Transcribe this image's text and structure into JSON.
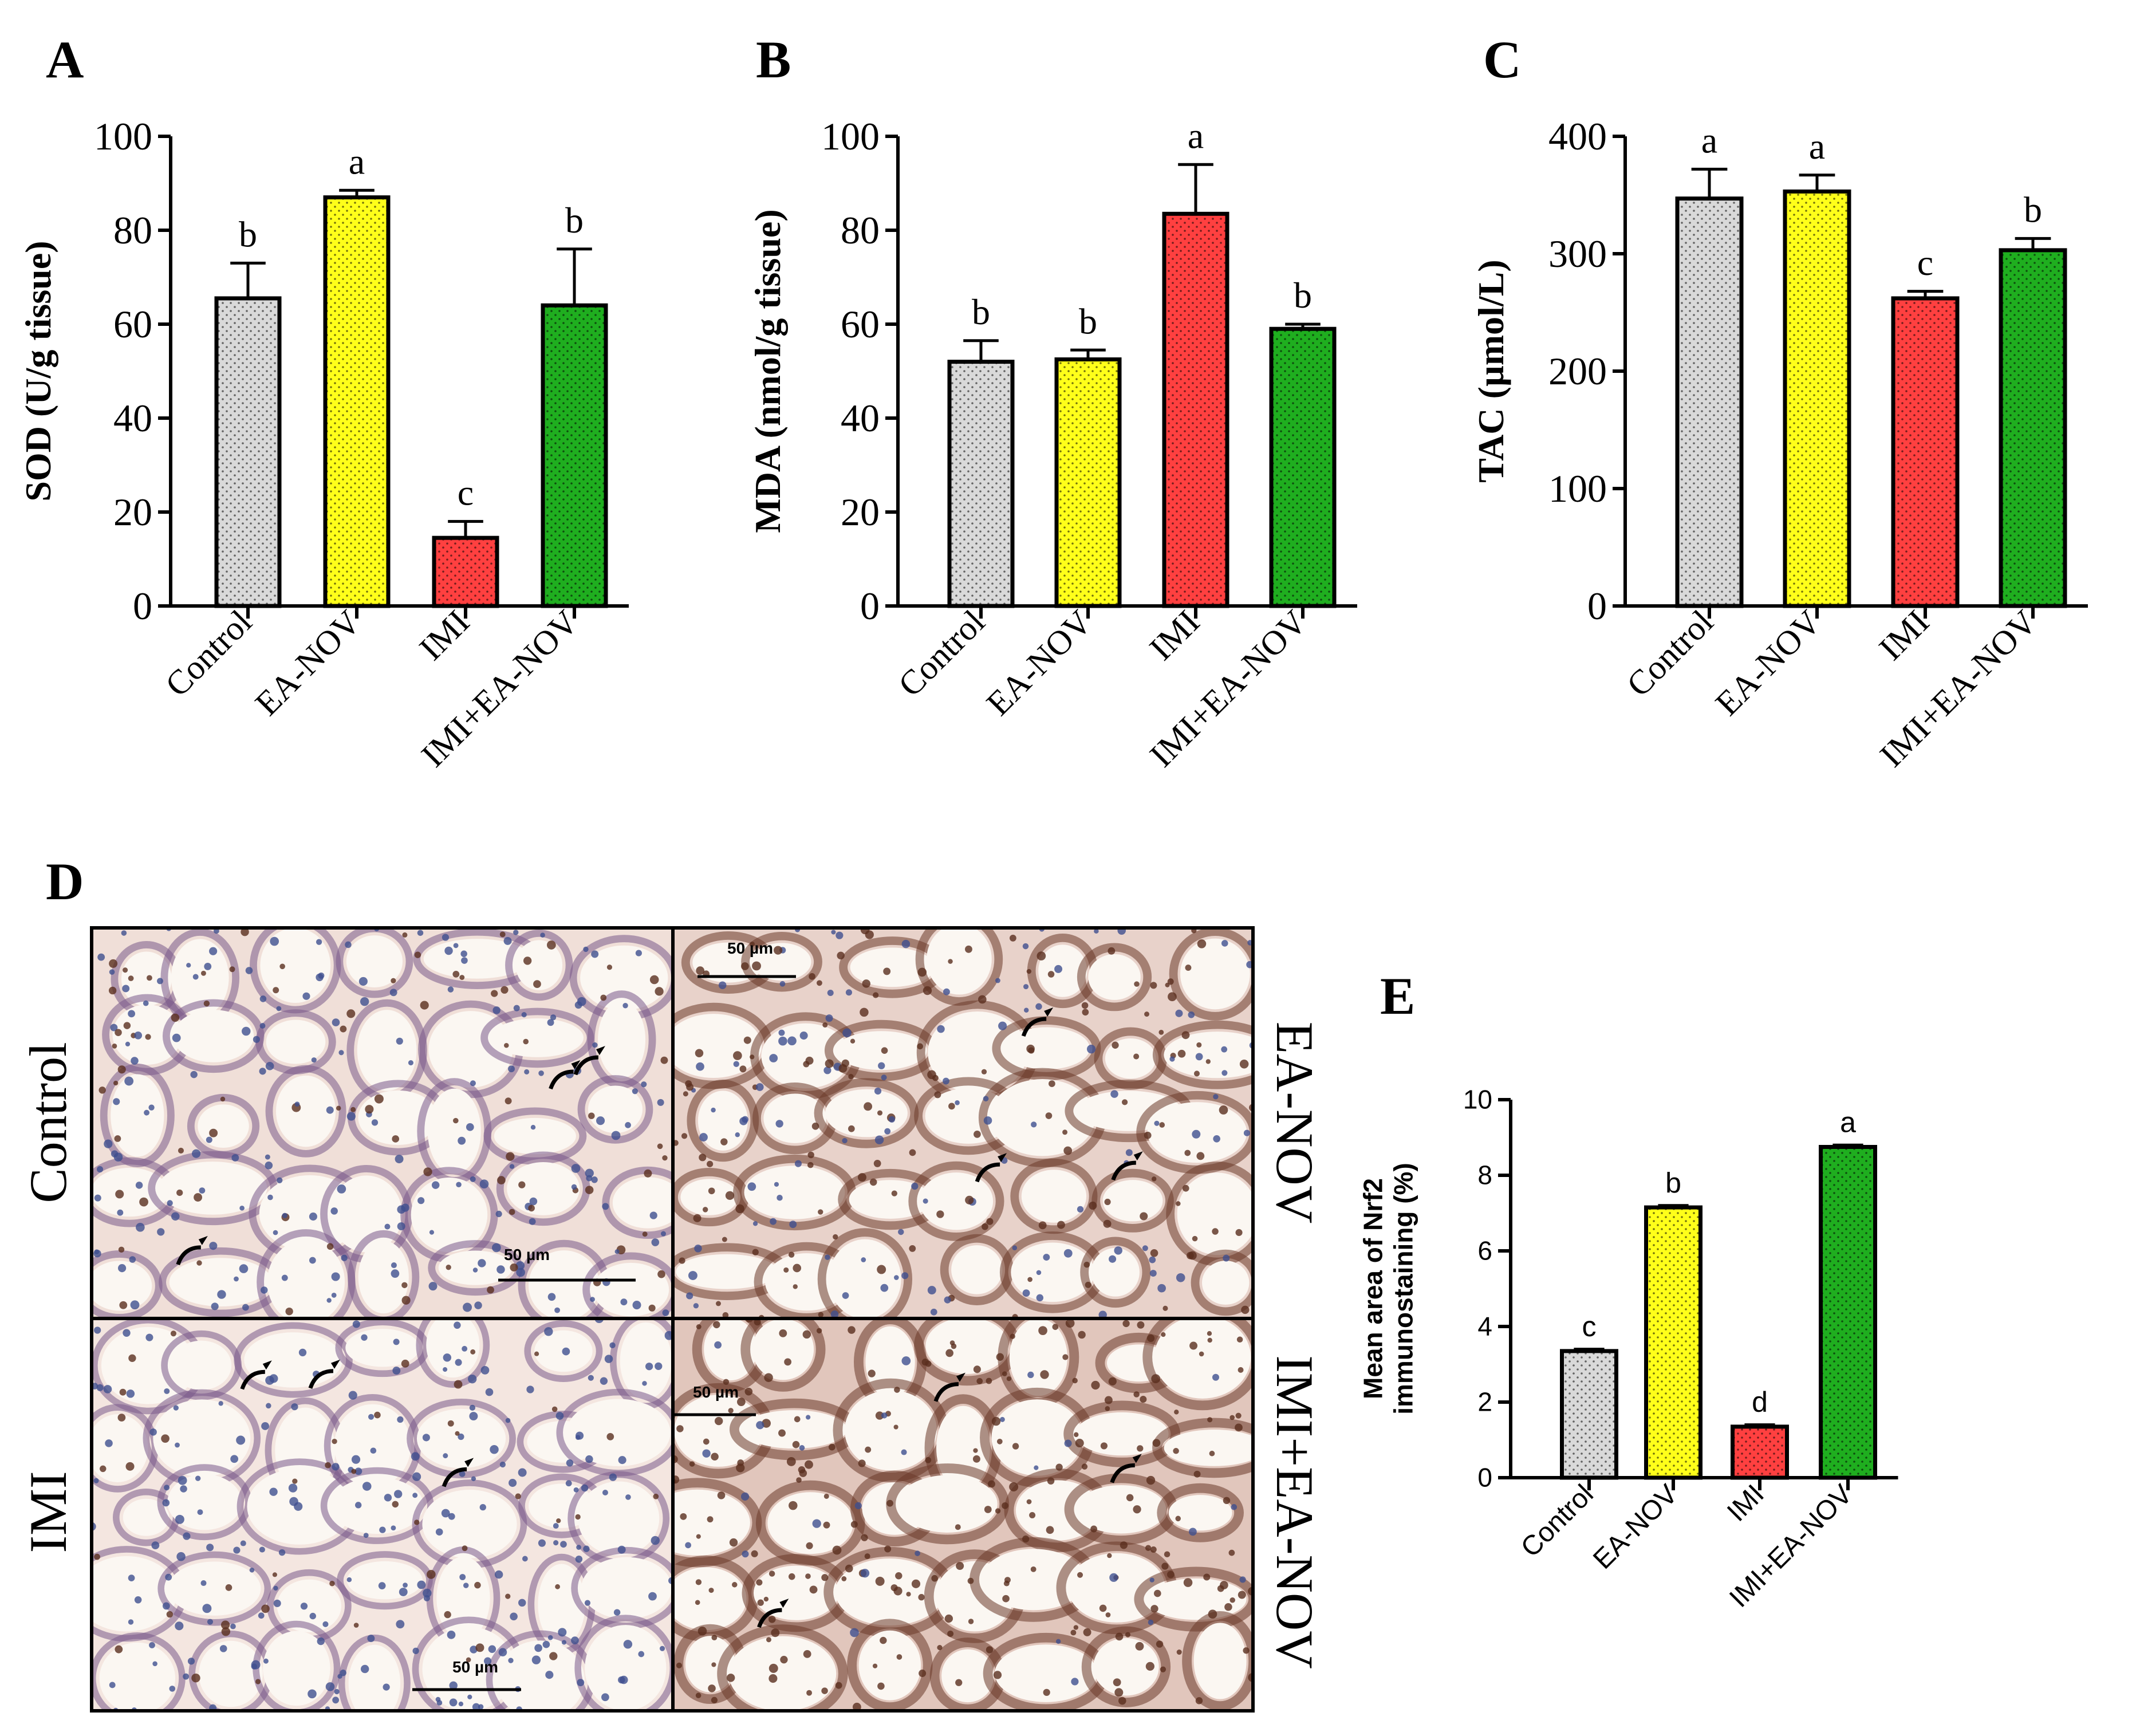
{
  "colors": {
    "Control": "#d9d9d9",
    "EA-NOV": "#ffff1a",
    "IMI": "#ff4040",
    "IMI+EA-NOV": "#1fae1f",
    "axis": "#000000",
    "dots": "#000000"
  },
  "chart_data": [
    {
      "panel": "A",
      "type": "bar",
      "ylabel": "SOD (U/g tissue)",
      "ylim": [
        0,
        100
      ],
      "yticks": [
        "0",
        "20",
        "40",
        "60",
        "80",
        "100"
      ],
      "categories": [
        "Control",
        "EA-NOV",
        "IMI",
        "IMI+EA-NOV"
      ],
      "values": [
        65.5,
        87,
        14.5,
        64
      ],
      "errors": [
        7.5,
        1.5,
        3.5,
        12
      ],
      "letters": [
        "b",
        "a",
        "c",
        "b"
      ]
    },
    {
      "panel": "B",
      "type": "bar",
      "ylabel": "MDA (nmol/g tissue)",
      "ylim": [
        0,
        100
      ],
      "yticks": [
        "0",
        "20",
        "40",
        "60",
        "80",
        "100"
      ],
      "categories": [
        "Control",
        "EA-NOV",
        "IMI",
        "IMI+EA-NOV"
      ],
      "values": [
        52,
        52.5,
        83.5,
        59
      ],
      "errors": [
        4.5,
        2,
        10.5,
        1
      ],
      "letters": [
        "b",
        "b",
        "a",
        "b"
      ]
    },
    {
      "panel": "C",
      "type": "bar",
      "ylabel": "TAC (µmol/L)",
      "ylim": [
        0,
        400
      ],
      "yticks": [
        "0",
        "100",
        "200",
        "300",
        "400"
      ],
      "categories": [
        "Control",
        "EA-NOV",
        "IMI",
        "IMI+EA-NOV"
      ],
      "values": [
        347,
        353,
        262,
        303
      ],
      "errors": [
        25,
        14,
        6,
        10
      ],
      "letters": [
        "a",
        "a",
        "c",
        "b"
      ]
    },
    {
      "panel": "E",
      "type": "bar",
      "ylabel": "Mean area of Nrf2 immunostaining (%)",
      "ylabel_lines": [
        "Mean area of Nrf2",
        "immunostaining (%)"
      ],
      "ylim": [
        0,
        10
      ],
      "yticks": [
        "0",
        "2",
        "4",
        "6",
        "8",
        "10"
      ],
      "categories": [
        "Control",
        "EA-NOV",
        "IMI",
        "IMI+EA-NOV"
      ],
      "values": [
        3.35,
        7.15,
        1.35,
        8.75
      ],
      "errors": [
        0.05,
        0.05,
        0.05,
        0.05
      ],
      "letters": [
        "c",
        "b",
        "d",
        "a"
      ]
    }
  ],
  "panel_d": {
    "letter": "D",
    "scale_bar": "50 µm",
    "quadrants": [
      {
        "group": "Control",
        "label_side": "left",
        "stain": 0.35
      },
      {
        "group": "EA-NOV",
        "label_side": "right",
        "stain": 0.6
      },
      {
        "group": "IMI",
        "label_side": "left",
        "stain": 0.2
      },
      {
        "group": "IMI+EA-NOV",
        "label_side": "right",
        "stain": 0.85
      }
    ]
  }
}
